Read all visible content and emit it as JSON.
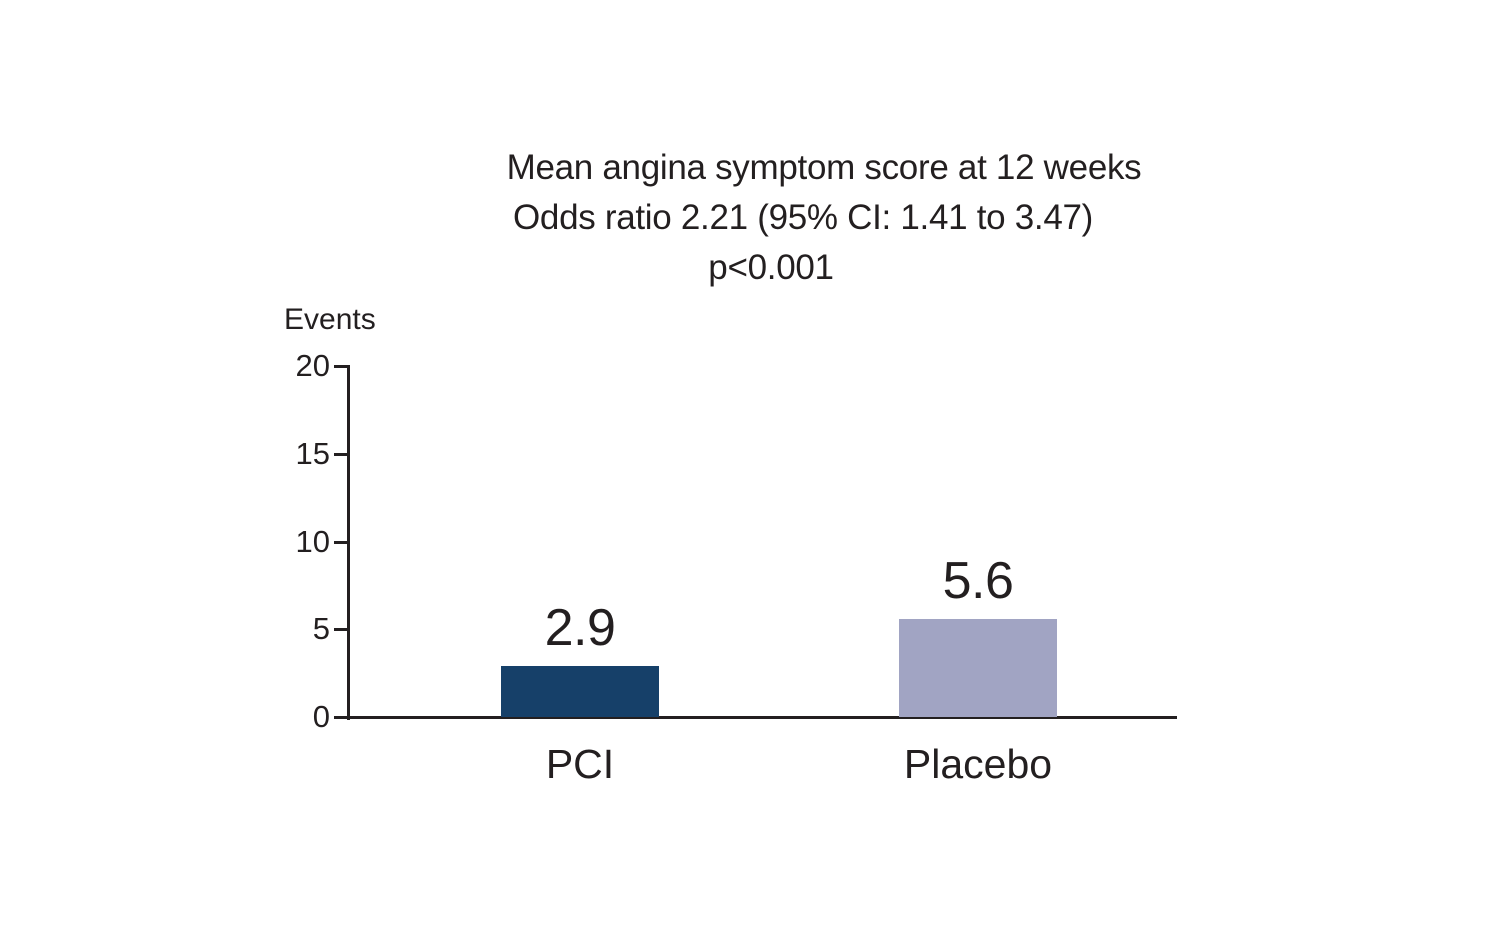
{
  "chart_data": {
    "type": "bar",
    "title": "Mean angina symptom score at 12 weeks",
    "subtitle": "Odds ratio 2.21 (95% CI: 1.41 to 3.47)",
    "stat_line": "p<0.001",
    "ylabel": "Events",
    "categories": [
      "PCI",
      "Placebo"
    ],
    "values": [
      2.9,
      5.6
    ],
    "data_labels": [
      "2.9",
      "5.6"
    ],
    "bar_colors": [
      "#164069",
      "#a1a4c3"
    ],
    "ylim": [
      0,
      20
    ],
    "yticks": [
      0,
      5,
      10,
      15,
      20
    ],
    "grid": false,
    "legend": "none",
    "axis_color": "#231f20",
    "text_color": "#231f20",
    "background": "#ffffff"
  }
}
